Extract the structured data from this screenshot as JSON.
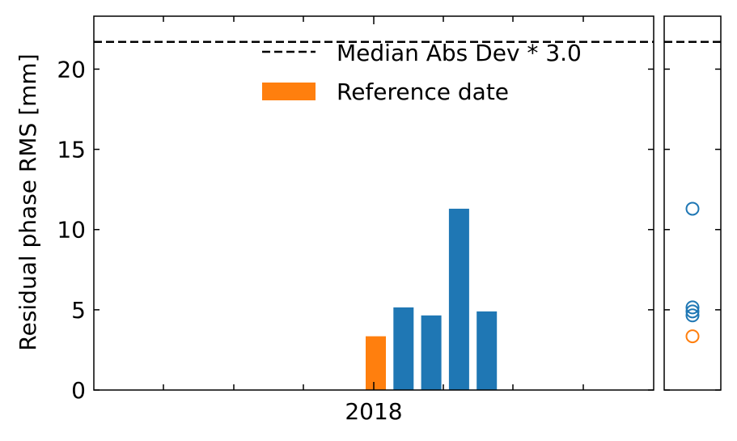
{
  "chart_data": [
    {
      "type": "bar",
      "ylabel": "Residual phase RMS [mm]",
      "ylim": [
        0,
        23.3
      ],
      "yticks": [
        0,
        5,
        10,
        15,
        20
      ],
      "xticks": [
        "2018"
      ],
      "threshold": {
        "label": "Median Abs Dev * 3.0",
        "value": 21.7,
        "color": "#000000"
      },
      "legend": {
        "placement": "top-right",
        "entries": [
          "Median Abs Dev * 3.0",
          "Reference date"
        ]
      },
      "series": [
        {
          "name": "Reference date",
          "color": "#ff7f0e",
          "bars": [
            {
              "slot": 0,
              "value": 3.35
            }
          ]
        },
        {
          "color": "#1f77b4",
          "bars": [
            {
              "slot": 1,
              "value": 5.15
            },
            {
              "slot": 2,
              "value": 4.65
            },
            {
              "slot": 3,
              "value": 11.3
            },
            {
              "slot": 4,
              "value": 4.9
            }
          ]
        }
      ]
    },
    {
      "type": "scatter",
      "ylim": [
        0,
        23.3
      ],
      "threshold_value": 21.7,
      "points": [
        {
          "value": 11.3,
          "color": "#1f77b4"
        },
        {
          "value": 5.15,
          "color": "#1f77b4"
        },
        {
          "value": 4.9,
          "color": "#1f77b4"
        },
        {
          "value": 4.65,
          "color": "#1f77b4"
        },
        {
          "value": 3.35,
          "color": "#ff7f0e"
        }
      ]
    }
  ]
}
